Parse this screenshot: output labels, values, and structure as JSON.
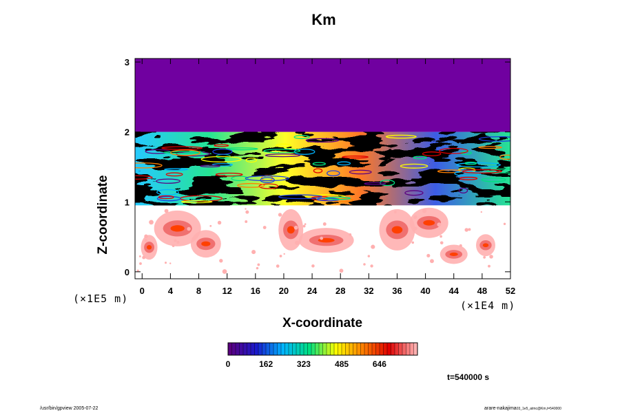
{
  "chart_data": {
    "type": "heatmap",
    "title": "Km",
    "xlabel": "X-coordinate",
    "ylabel": "Z-coordinate",
    "x_unit": "(×1E4 m)",
    "y_unit": "(×1E5 m)",
    "xlim": [
      -1,
      52
    ],
    "ylim": [
      -0.1,
      3.05
    ],
    "x_ticks": [
      0,
      4,
      8,
      12,
      16,
      20,
      24,
      28,
      32,
      36,
      40,
      44,
      48,
      52
    ],
    "y_ticks": [
      0,
      1,
      2,
      3
    ],
    "colorbar": {
      "min": 0,
      "max": 808,
      "tick_values": [
        0,
        162,
        323,
        485,
        646
      ],
      "tick_labels": [
        "0",
        "162",
        "323",
        "485",
        "646"
      ],
      "colors": [
        "#5a0080",
        "#1a1acc",
        "#00b4ff",
        "#00e080",
        "#ffff00",
        "#ff8000",
        "#e00000",
        "#ffb0b0"
      ]
    },
    "background_color": "#7000a0",
    "regions": [
      {
        "name": "upper uniform layer",
        "z": [
          2.0,
          3.05
        ],
        "level": "min"
      },
      {
        "name": "turbulent layer",
        "z": [
          0.95,
          2.0
        ],
        "level": "mixed"
      },
      {
        "name": "convective plumes",
        "z": [
          0.0,
          0.95
        ],
        "level": "mid-high"
      }
    ],
    "time_label": "t=540000 s"
  },
  "footer": {
    "left": "/usr/bin/gpview 2005-07-22",
    "right_main": "arare-nakajima",
    "right_sub": "03_1e5_atmc@Km,t=540000"
  }
}
